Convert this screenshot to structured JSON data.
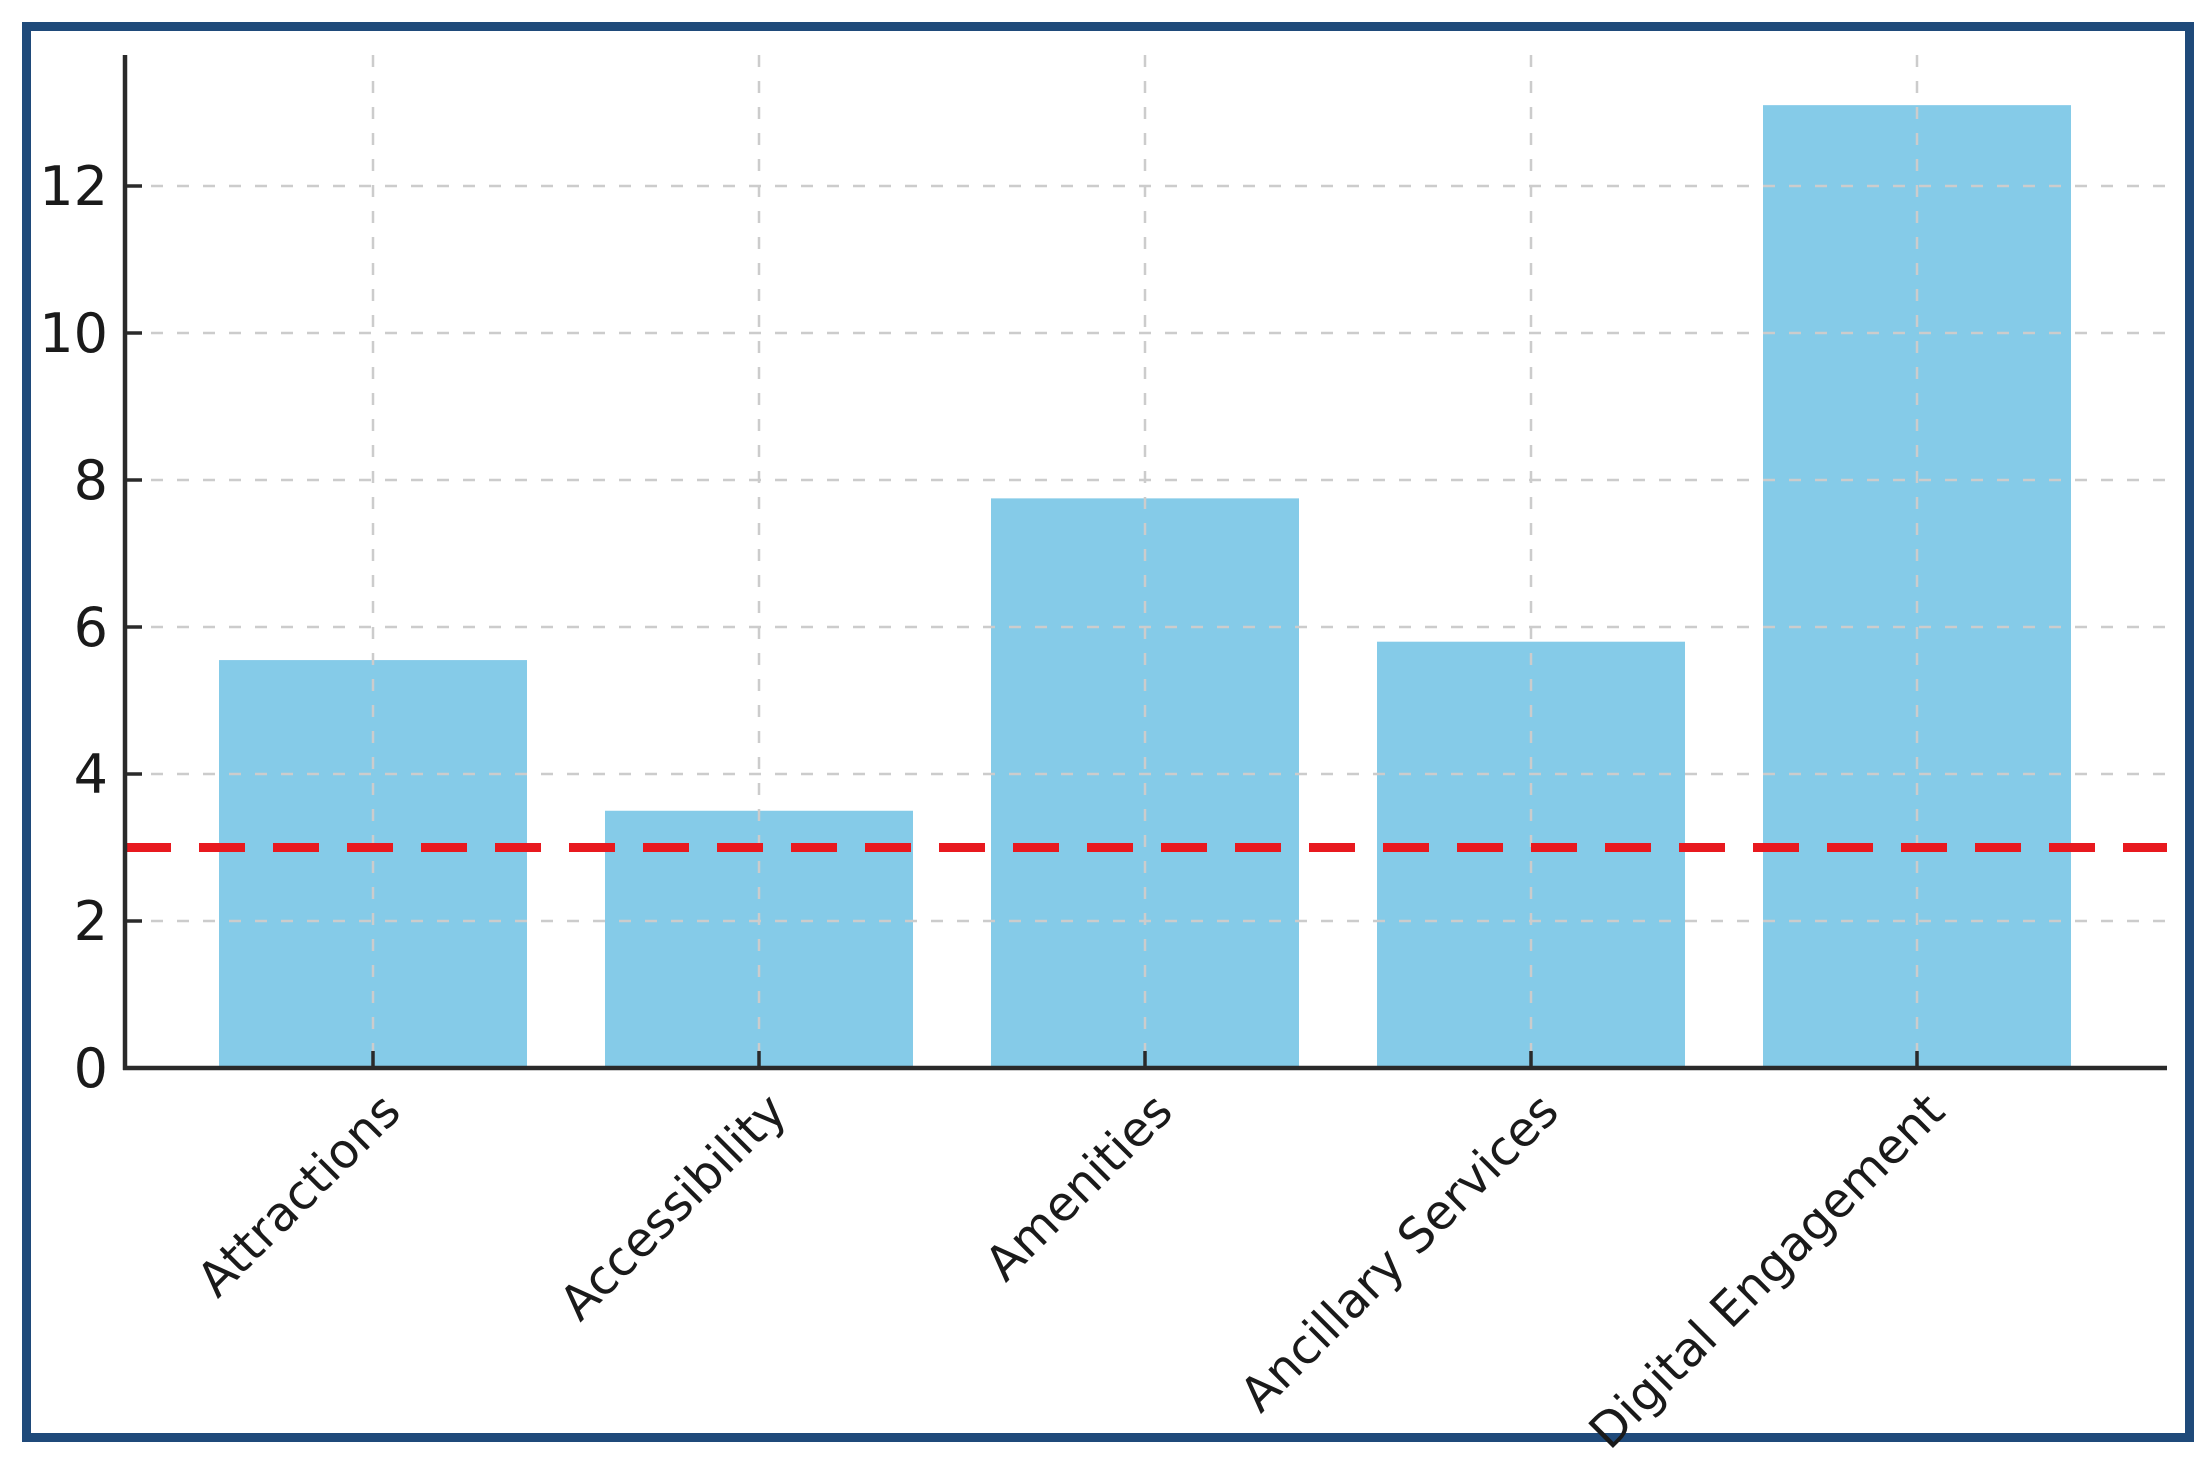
{
  "window": {
    "background_color": "#ffffff",
    "frame_border_color": "#1f4a7a"
  },
  "chart_data": {
    "type": "bar",
    "title": "",
    "xlabel": "",
    "ylabel": "",
    "categories": [
      "Attractions",
      "Accessibility",
      "Amenities",
      "Ancillary Services",
      "Digital Engagement"
    ],
    "values": [
      5.55,
      3.5,
      7.75,
      5.8,
      13.1
    ],
    "bar_color": "#85cbe8",
    "y_ticks": [
      0,
      2,
      4,
      6,
      8,
      10,
      12
    ],
    "y_tick_labels": [
      "0",
      "2",
      "4",
      "6",
      "8",
      "10",
      "12"
    ],
    "ylim": [
      0,
      13.78
    ],
    "grid": "on",
    "grid_style": "dashed",
    "grid_color": "#cccccc",
    "legend": "none",
    "x_label_rotation_deg": 45,
    "reference_line": {
      "value": 3,
      "color": "#e8191f",
      "style": "dashed"
    },
    "axis_color": "#2a2a2a",
    "tick_label_color": "#1a1a1a"
  }
}
